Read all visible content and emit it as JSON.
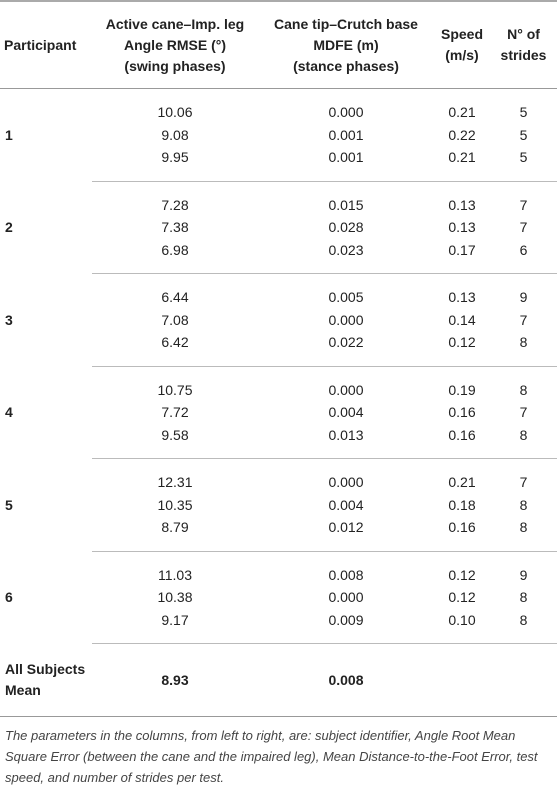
{
  "table": {
    "columns": [
      [
        "Participant"
      ],
      [
        "Active cane–Imp. leg",
        "Angle RMSE (°)",
        "(swing phases)"
      ],
      [
        "Cane tip–Crutch base",
        "MDFE (m)",
        "(stance phases)"
      ],
      [
        "Speed",
        "(m/s)"
      ],
      [
        "N° of",
        "strides"
      ]
    ],
    "groups": [
      {
        "participant": "1",
        "rows": [
          [
            "10.06",
            "0.000",
            "0.21",
            "5"
          ],
          [
            "9.08",
            "0.001",
            "0.22",
            "5"
          ],
          [
            "9.95",
            "0.001",
            "0.21",
            "5"
          ]
        ]
      },
      {
        "participant": "2",
        "rows": [
          [
            "7.28",
            "0.015",
            "0.13",
            "7"
          ],
          [
            "7.38",
            "0.028",
            "0.13",
            "7"
          ],
          [
            "6.98",
            "0.023",
            "0.17",
            "6"
          ]
        ]
      },
      {
        "participant": "3",
        "rows": [
          [
            "6.44",
            "0.005",
            "0.13",
            "9"
          ],
          [
            "7.08",
            "0.000",
            "0.14",
            "7"
          ],
          [
            "6.42",
            "0.022",
            "0.12",
            "8"
          ]
        ]
      },
      {
        "participant": "4",
        "rows": [
          [
            "10.75",
            "0.000",
            "0.19",
            "8"
          ],
          [
            "7.72",
            "0.004",
            "0.16",
            "7"
          ],
          [
            "9.58",
            "0.013",
            "0.16",
            "8"
          ]
        ]
      },
      {
        "participant": "5",
        "rows": [
          [
            "12.31",
            "0.000",
            "0.21",
            "7"
          ],
          [
            "10.35",
            "0.004",
            "0.18",
            "8"
          ],
          [
            "8.79",
            "0.012",
            "0.16",
            "8"
          ]
        ]
      },
      {
        "participant": "6",
        "rows": [
          [
            "11.03",
            "0.008",
            "0.12",
            "9"
          ],
          [
            "10.38",
            "0.000",
            "0.12",
            "8"
          ],
          [
            "9.17",
            "0.009",
            "0.10",
            "8"
          ]
        ]
      }
    ],
    "summary": {
      "label": [
        "All Subjects",
        "Mean"
      ],
      "values": [
        "8.93",
        "0.008"
      ]
    }
  },
  "caption": "The parameters in the columns, from left to right, are: subject identifier, Angle Root Mean Square Error (between the cane and the impaired leg), Mean Distance-to-the-Foot Error, test speed, and number of strides per test."
}
